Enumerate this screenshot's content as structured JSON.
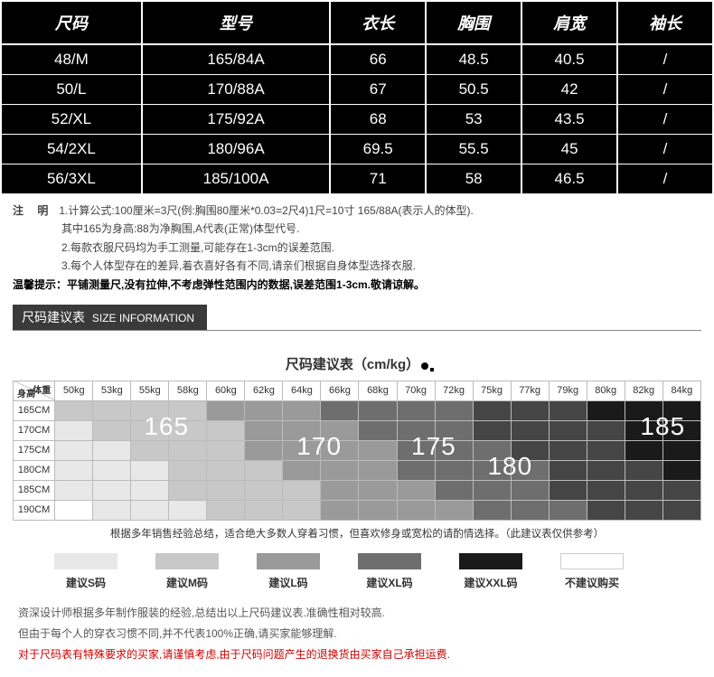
{
  "sizeTable": {
    "headers": [
      "尺码",
      "型号",
      "衣长",
      "胸围",
      "肩宽",
      "袖长"
    ],
    "rows": [
      [
        "48/M",
        "165/84A",
        "66",
        "48.5",
        "40.5",
        "/"
      ],
      [
        "50/L",
        "170/88A",
        "67",
        "50.5",
        "42",
        "/"
      ],
      [
        "52/XL",
        "175/92A",
        "68",
        "53",
        "43.5",
        "/"
      ],
      [
        "54/2XL",
        "180/96A",
        "69.5",
        "55.5",
        "45",
        "/"
      ],
      [
        "56/3XL",
        "185/100A",
        "71",
        "58",
        "46.5",
        "/"
      ]
    ]
  },
  "notes": {
    "label": "注 明",
    "line1": "1.计算公式:100厘米=3尺(例:胸围80厘米*0.03=2尺4)1尺=10寸 165/88A(表示人的体型).",
    "line1b": "其中165为身高:88为净胸围,A代表(正常)体型代号.",
    "line2": "2.每款衣服尺码均为手工测量,可能存在1-3cm的误差范围.",
    "line3": "3.每个人体型存在的差异,着衣喜好各有不同,请亲们根据自身体型选择衣服.",
    "warmLabel": "温馨提示：",
    "warmText": "平铺测量尺,没有拉伸,不考虑弹性范围内的数据,误差范围1-3cm.敬请谅解。"
  },
  "sectionBar": {
    "cn": "尺码建议表",
    "en": "SIZE INFORMATION"
  },
  "recTitle": "尺码建议表（cm/kg）",
  "recGrid": {
    "cornerTop": "体重",
    "cornerBottom": "身高",
    "cols": [
      "50kg",
      "53kg",
      "55kg",
      "58kg",
      "60kg",
      "62kg",
      "64kg",
      "66kg",
      "68kg",
      "70kg",
      "72kg",
      "75kg",
      "77kg",
      "79kg",
      "80kg",
      "82kg",
      "84kg"
    ],
    "rowHeaders": [
      "165CM",
      "170CM",
      "175CM",
      "180CM",
      "185CM",
      "190CM"
    ],
    "shades": [
      [
        2,
        2,
        2,
        2,
        3,
        3,
        3,
        4,
        4,
        4,
        4,
        5,
        5,
        5,
        6,
        6,
        6
      ],
      [
        1,
        2,
        2,
        2,
        2,
        3,
        3,
        3,
        4,
        4,
        4,
        5,
        5,
        5,
        5,
        6,
        6
      ],
      [
        1,
        1,
        2,
        2,
        2,
        3,
        3,
        3,
        3,
        4,
        4,
        4,
        5,
        5,
        5,
        6,
        6
      ],
      [
        1,
        1,
        1,
        2,
        2,
        2,
        3,
        3,
        3,
        4,
        4,
        4,
        4,
        5,
        5,
        5,
        6
      ],
      [
        1,
        1,
        1,
        2,
        2,
        2,
        2,
        3,
        3,
        3,
        4,
        4,
        4,
        5,
        5,
        5,
        5
      ],
      [
        0,
        1,
        1,
        1,
        2,
        2,
        2,
        3,
        3,
        3,
        3,
        4,
        4,
        4,
        5,
        5,
        5
      ]
    ],
    "overlays": [
      {
        "text": "165",
        "row": 1,
        "col": 3
      },
      {
        "text": "170",
        "row": 2,
        "col": 7
      },
      {
        "text": "175",
        "row": 2,
        "col": 10
      },
      {
        "text": "180",
        "row": 3,
        "col": 12
      },
      {
        "text": "185",
        "row": 1,
        "col": 16
      }
    ]
  },
  "recNote": "根据多年销售经验总结，适合绝大多数人穿着习惯，但喜欢修身或宽松的请酌情选择。（此建议表仅供参考）",
  "legend": {
    "items": [
      {
        "shade": 1,
        "label": "建议S码"
      },
      {
        "shade": 2,
        "label": "建议M码"
      },
      {
        "shade": 3,
        "label": "建议L码"
      },
      {
        "shade": 4,
        "label": "建议XL码"
      },
      {
        "shade": 6,
        "label": "建议XXL码"
      },
      {
        "shade": 0,
        "label": "不建议购买"
      }
    ]
  },
  "footer": {
    "l1": "资深设计师根据多年制作服装的经验,总结出以上尺码建议表.准确性相对较高.",
    "l2": "但由于每个人的穿衣习惯不同,并不代表100%正确,请买家能够理解.",
    "l3": "对于尺码表有特殊要求的买家,请谨慎考虑,由于尺码问题产生的退换货由买家自己承担运费."
  },
  "colors": {
    "shadeMap": [
      "#ffffff",
      "#e8e8e8",
      "#c8c8c8",
      "#9a9a9a",
      "#6e6e6e",
      "#454545",
      "#1a1a1a"
    ]
  }
}
